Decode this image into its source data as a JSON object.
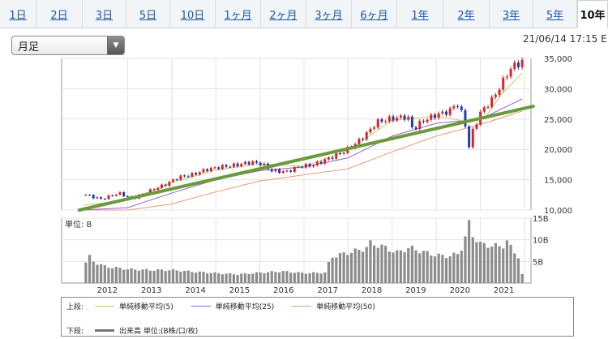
{
  "tabs": [
    "1日",
    "2日",
    "3日",
    "5日",
    "10日",
    "1ヶ月",
    "2ヶ月",
    "3ヶ月",
    "6ヶ月",
    "1年",
    "2年",
    "3年",
    "5年",
    "10年"
  ],
  "active_tab": "10年",
  "period_select": {
    "value": "月足"
  },
  "timestamp": "21/06/14 17:15 E",
  "legend": {
    "upper_label": "上段:",
    "lower_label": "下段:",
    "ma5": "単純移動平均(5)",
    "ma25": "単純移動平均(25)",
    "ma50": "単純移動平均(50)",
    "volume": "出来高 単位:(B株/口/枚)"
  },
  "colors": {
    "up": "#d9262b",
    "down": "#1f3fa6",
    "ma5": "#c5cf6a",
    "ma25": "#9a5fd0",
    "ma50": "#e89a7f",
    "trend": "#6a9a3a",
    "volume": "#8c8c8c"
  },
  "chart_data": {
    "type": "candlestick",
    "price_panel": {
      "yticks": [
        10000,
        15000,
        20000,
        25000,
        30000,
        35000
      ],
      "ytick_labels": [
        "10,000",
        "15,000",
        "20,000",
        "25,000",
        "30,000",
        "35,000"
      ],
      "ylim": [
        10000,
        35000
      ],
      "monthly_close": [
        [
          2011.55,
          12500
        ],
        [
          2011.9,
          11800
        ],
        [
          2012.3,
          12800
        ],
        [
          2012.6,
          11900
        ],
        [
          2012.95,
          13000
        ],
        [
          2013.35,
          14200
        ],
        [
          2013.65,
          15400
        ],
        [
          2013.95,
          15800
        ],
        [
          2014.3,
          16700
        ],
        [
          2014.6,
          17100
        ],
        [
          2014.95,
          17400
        ],
        [
          2015.3,
          17900
        ],
        [
          2015.55,
          17600
        ],
        [
          2015.75,
          16500
        ],
        [
          2016.1,
          16300
        ],
        [
          2016.4,
          17200
        ],
        [
          2016.7,
          17400
        ],
        [
          2017.0,
          18300
        ],
        [
          2017.4,
          19600
        ],
        [
          2017.7,
          21100
        ],
        [
          2017.95,
          22800
        ],
        [
          2018.15,
          24500
        ],
        [
          2018.5,
          25100
        ],
        [
          2018.85,
          25400
        ],
        [
          2018.97,
          23300
        ],
        [
          2019.2,
          24700
        ],
        [
          2019.5,
          25700
        ],
        [
          2019.8,
          26300
        ],
        [
          2019.97,
          27700
        ],
        [
          2020.15,
          24700
        ],
        [
          2020.22,
          19500
        ],
        [
          2020.3,
          22500
        ],
        [
          2020.5,
          26000
        ],
        [
          2020.8,
          28500
        ],
        [
          2021.0,
          31000
        ],
        [
          2021.15,
          33000
        ],
        [
          2021.3,
          34000
        ],
        [
          2021.45,
          34400
        ]
      ],
      "ma5": [
        [
          2011.5,
          10800
        ],
        [
          2012.5,
          11600
        ],
        [
          2013.5,
          14500
        ],
        [
          2014.5,
          16600
        ],
        [
          2015.5,
          17600
        ],
        [
          2016.5,
          17200
        ],
        [
          2017.5,
          19800
        ],
        [
          2018.5,
          24800
        ],
        [
          2019.5,
          25500
        ],
        [
          2020.25,
          24500
        ],
        [
          2020.6,
          25200
        ],
        [
          2021.0,
          29200
        ],
        [
          2021.45,
          32600
        ]
      ],
      "ma25": [
        [
          2011.5,
          10000
        ],
        [
          2012.5,
          10400
        ],
        [
          2013.5,
          12800
        ],
        [
          2014.5,
          15000
        ],
        [
          2015.5,
          16500
        ],
        [
          2016.5,
          17100
        ],
        [
          2017.5,
          18600
        ],
        [
          2018.5,
          22200
        ],
        [
          2019.5,
          24300
        ],
        [
          2020.5,
          25000
        ],
        [
          2021.45,
          28300
        ]
      ],
      "ma50": [
        [
          2011.5,
          10000
        ],
        [
          2012.5,
          10000
        ],
        [
          2013.5,
          11000
        ],
        [
          2014.5,
          13000
        ],
        [
          2015.5,
          14800
        ],
        [
          2016.5,
          15800
        ],
        [
          2017.5,
          16800
        ],
        [
          2018.5,
          19600
        ],
        [
          2019.5,
          22200
        ],
        [
          2020.5,
          24100
        ],
        [
          2021.45,
          26300
        ]
      ],
      "trendline": [
        [
          2011.4,
          10000
        ],
        [
          2021.7,
          27100
        ]
      ]
    },
    "volume_panel": {
      "unit": "単位: B",
      "yticks": [
        5,
        10,
        15
      ],
      "ytick_labels": [
        "5B",
        "10B",
        "15B"
      ],
      "ylim": [
        0,
        15
      ],
      "monthly_volume": [
        [
          2011.5,
          3.0
        ],
        [
          2011.6,
          6.5
        ],
        [
          2011.7,
          5.2
        ],
        [
          2011.8,
          4.6
        ],
        [
          2011.9,
          4.2
        ],
        [
          2012.0,
          3.8
        ],
        [
          2012.5,
          3.2
        ],
        [
          2013.0,
          3.0
        ],
        [
          2013.5,
          3.0
        ],
        [
          2014.0,
          2.6
        ],
        [
          2014.5,
          2.3
        ],
        [
          2015.0,
          2.0
        ],
        [
          2015.5,
          2.4
        ],
        [
          2016.0,
          2.7
        ],
        [
          2016.5,
          2.3
        ],
        [
          2017.0,
          2.4
        ],
        [
          2017.1,
          6.0
        ],
        [
          2017.5,
          7.0
        ],
        [
          2017.9,
          8.0
        ],
        [
          2018.0,
          9.2
        ],
        [
          2018.3,
          8.4
        ],
        [
          2018.6,
          7.0
        ],
        [
          2018.9,
          8.2
        ],
        [
          2019.2,
          7.2
        ],
        [
          2019.5,
          6.4
        ],
        [
          2019.8,
          6.2
        ],
        [
          2020.0,
          6.8
        ],
        [
          2020.15,
          9.5
        ],
        [
          2020.2,
          15.3
        ],
        [
          2020.3,
          11.5
        ],
        [
          2020.5,
          9.0
        ],
        [
          2020.8,
          8.6
        ],
        [
          2021.0,
          8.4
        ],
        [
          2021.1,
          9.8
        ],
        [
          2021.25,
          7.2
        ],
        [
          2021.35,
          6.8
        ],
        [
          2021.45,
          2.0
        ]
      ]
    },
    "x_ticks": [
      2012,
      2013,
      2014,
      2015,
      2016,
      2017,
      2018,
      2019,
      2020,
      2021
    ],
    "x_tick_labels": [
      "2012",
      "2013",
      "2014",
      "2015",
      "2016",
      "2017",
      "2018",
      "2019",
      "2020",
      "2021"
    ],
    "xlim": [
      2011.0,
      2021.65
    ]
  }
}
